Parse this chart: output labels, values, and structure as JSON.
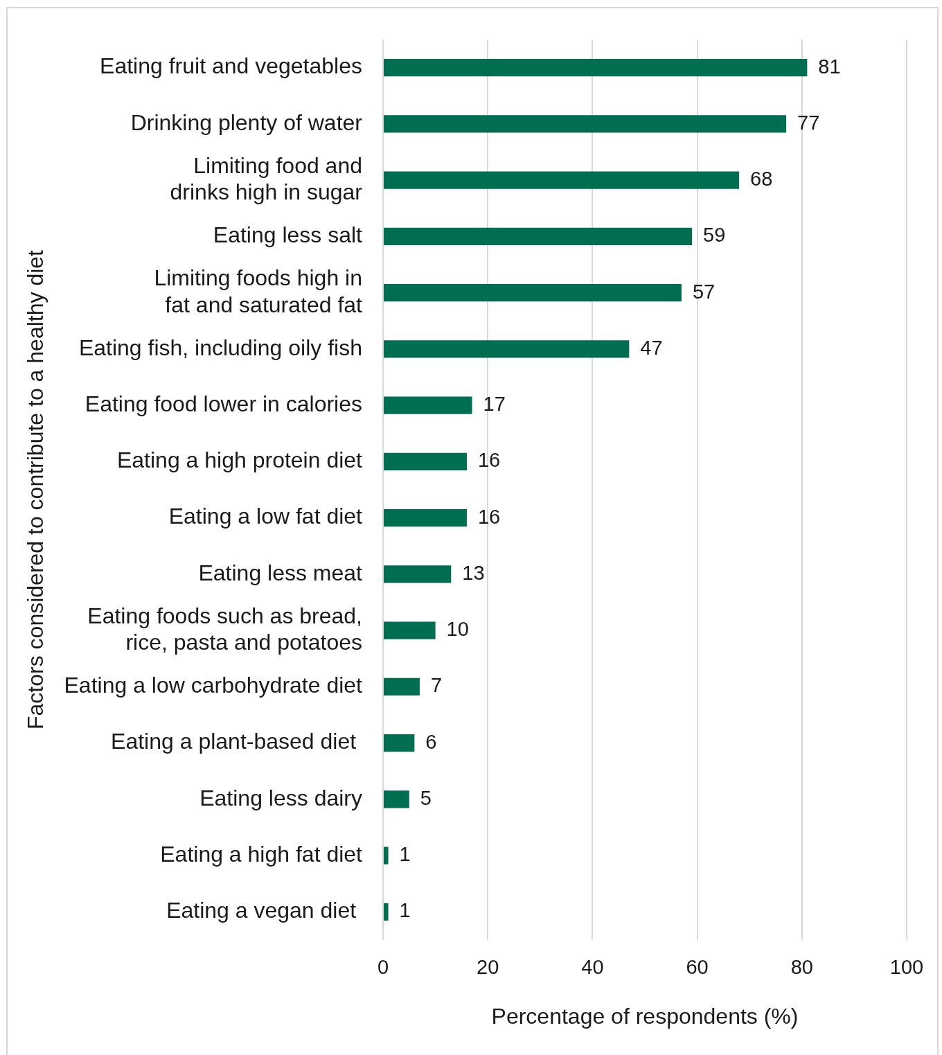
{
  "chart_data": {
    "type": "bar",
    "orientation": "horizontal",
    "xlabel": "Percentage of respondents (%)",
    "ylabel": "Factors considered to contribute to a healthy diet",
    "categories": [
      "Eating fruit and vegetables",
      "Drinking plenty of water",
      "Limiting food and\ndrinks high in sugar",
      "Eating less salt",
      "Limiting foods high in\nfat and saturated fat",
      "Eating fish, including oily fish",
      "Eating food lower in calories",
      "Eating a high protein diet",
      "Eating a low fat diet",
      "Eating less meat",
      "Eating foods such as bread,\nrice, pasta and potatoes",
      "Eating a low carbohydrate diet",
      "Eating a plant-based diet ",
      "Eating less dairy",
      "Eating a high fat diet",
      "Eating a vegan diet "
    ],
    "values": [
      81,
      77,
      68,
      59,
      57,
      47,
      17,
      16,
      16,
      13,
      10,
      7,
      6,
      5,
      1,
      1
    ],
    "color": "#006e51",
    "xlim": [
      0,
      100
    ],
    "xticks": [
      0,
      20,
      40,
      60,
      80,
      100
    ],
    "grid": "x",
    "data_labels": true
  }
}
